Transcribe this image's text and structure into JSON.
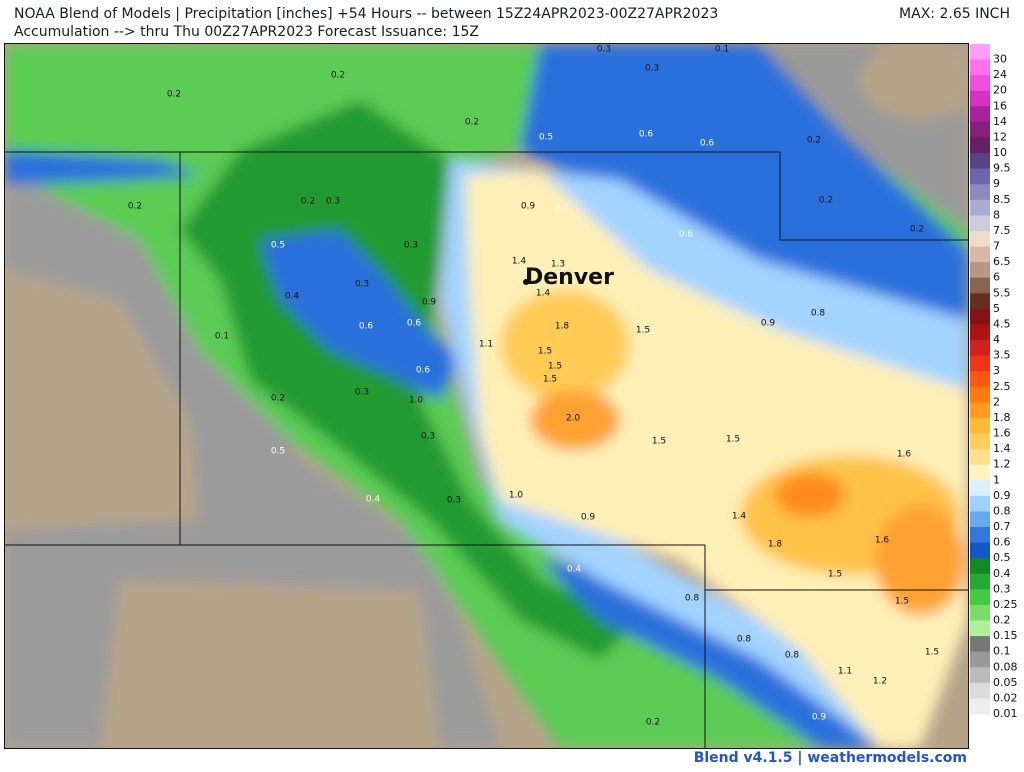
{
  "header": {
    "line1": "NOAA Blend of Models | Precipitation [inches] +54 Hours -- between 15Z24APR2023-00Z27APR2023",
    "line2": "Accumulation --> thru Thu 00Z27APR2023   Forecast Issuance: 15Z",
    "max": "MAX: 2.65 INCH"
  },
  "map": {
    "city": "Denver",
    "labels": [
      "0.3",
      "0.1",
      "0.2",
      "0.3",
      "0.2",
      "0.2",
      "0.5",
      "0.6",
      "0.6",
      "0.2",
      "0.2",
      "0.2",
      "0.3",
      "0.9",
      "0.7",
      "0.2",
      "0.2",
      "0.5",
      "0.3",
      "0.6",
      "1.4",
      "1.3",
      "1.4",
      "0.4",
      "0.3",
      "0.9",
      "0.9",
      "0.8",
      "0.1",
      "0.6",
      "0.6",
      "1.8",
      "1.5",
      "1.1",
      "1.5",
      "1.5",
      "0.6",
      "1.5",
      "0.3",
      "0.2",
      "1.0",
      "2.0",
      "0.3",
      "1.5",
      "1.5",
      "0.5",
      "1.6",
      "0.4",
      "0.3",
      "1.0",
      "0.9",
      "1.4",
      "1.8",
      "1.6",
      "0.4",
      "1.5",
      "0.8",
      "1.5",
      "0.8",
      "0.8",
      "1.5",
      "1.1",
      "1.2",
      "0.2",
      "0.9"
    ]
  },
  "legend": [
    {
      "label": "30",
      "color": "#ff9cf6"
    },
    {
      "label": "24",
      "color": "#ff70ee"
    },
    {
      "label": "20",
      "color": "#ee4fdb"
    },
    {
      "label": "16",
      "color": "#d531c4"
    },
    {
      "label": "14",
      "color": "#a8229a"
    },
    {
      "label": "12",
      "color": "#86207a"
    },
    {
      "label": "10",
      "color": "#652063"
    },
    {
      "label": "9.5",
      "color": "#574488"
    },
    {
      "label": "9",
      "color": "#6a68ac"
    },
    {
      "label": "8.5",
      "color": "#8a8abf"
    },
    {
      "label": "8",
      "color": "#ababd2"
    },
    {
      "label": "7.5",
      "color": "#ccccde"
    },
    {
      "label": "7",
      "color": "#f0dccc"
    },
    {
      "label": "6.5",
      "color": "#d8b8a6"
    },
    {
      "label": "6",
      "color": "#b99584"
    },
    {
      "label": "5.5",
      "color": "#886453"
    },
    {
      "label": "5",
      "color": "#65301f"
    },
    {
      "label": "4.5",
      "color": "#861212"
    },
    {
      "label": "4",
      "color": "#ad1313"
    },
    {
      "label": "3.5",
      "color": "#d02121"
    },
    {
      "label": "3",
      "color": "#ef3513"
    },
    {
      "label": "2.5",
      "color": "#ff5612"
    },
    {
      "label": "2",
      "color": "#ff7a10"
    },
    {
      "label": "1.8",
      "color": "#ff9a22"
    },
    {
      "label": "1.6",
      "color": "#ffbb38"
    },
    {
      "label": "1.4",
      "color": "#ffcf5c"
    },
    {
      "label": "1.2",
      "color": "#ffe08f"
    },
    {
      "label": "1",
      "color": "#fff3c4"
    },
    {
      "label": "0.9",
      "color": "#dcefff"
    },
    {
      "label": "0.8",
      "color": "#9fd0ff"
    },
    {
      "label": "0.7",
      "color": "#67a9ee"
    },
    {
      "label": "0.6",
      "color": "#3478dc"
    },
    {
      "label": "0.5",
      "color": "#1556c8"
    },
    {
      "label": "0.4",
      "color": "#118a24"
    },
    {
      "label": "0.3",
      "color": "#22aa35"
    },
    {
      "label": "0.25",
      "color": "#44c845"
    },
    {
      "label": "0.2",
      "color": "#7cdc6a"
    },
    {
      "label": "0.15",
      "color": "#b0ef9e"
    },
    {
      "label": "0.1",
      "color": "#777777"
    },
    {
      "label": "0.08",
      "color": "#999999"
    },
    {
      "label": "0.05",
      "color": "#bbbbbb"
    },
    {
      "label": "0.02",
      "color": "#dcdcdc"
    },
    {
      "label": "0.01",
      "color": "#eeeeee"
    }
  ],
  "footer": "Blend v4.1.5 | weathermodels.com"
}
